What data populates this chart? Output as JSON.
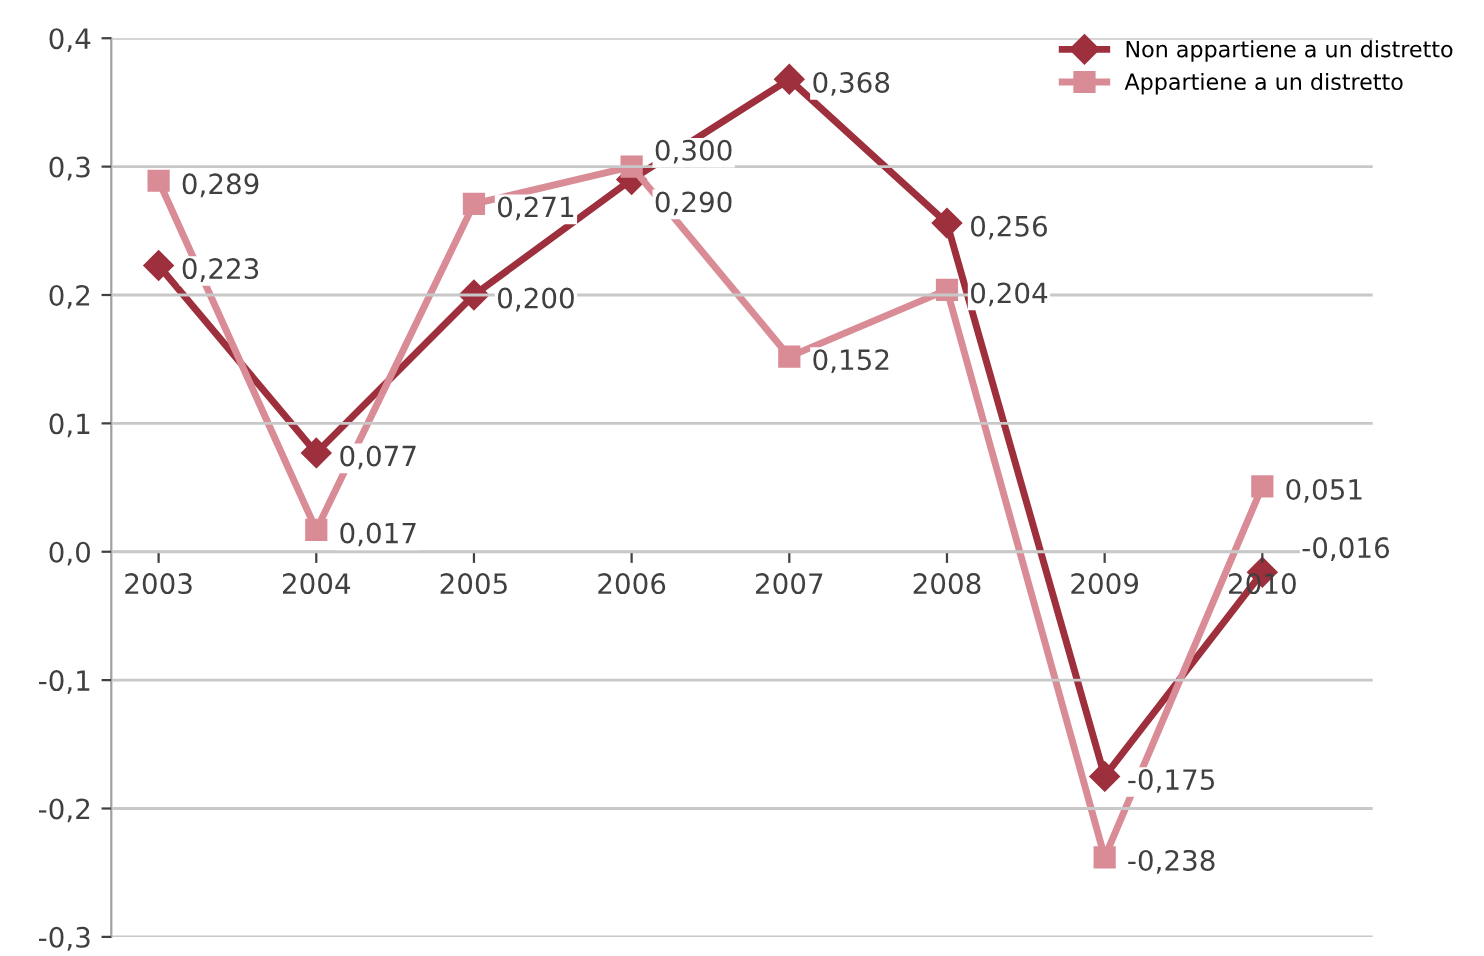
{
  "chart_data": {
    "type": "line",
    "categories": [
      "2003",
      "2004",
      "2005",
      "2006",
      "2007",
      "2008",
      "2009",
      "2010"
    ],
    "series": [
      {
        "name": "Non appartiene a un distretto",
        "color": "#9e2f3c",
        "marker": "diamond",
        "values": [
          0.223,
          0.077,
          0.2,
          0.29,
          0.368,
          0.256,
          -0.175,
          -0.016
        ],
        "value_labels": [
          "0,223",
          "0,077",
          "0,200",
          "0,290",
          "0,368",
          "0,256",
          "-0,175",
          "-0,016"
        ]
      },
      {
        "name": "Appartiene a un distretto",
        "color": "#d98c96",
        "marker": "square",
        "values": [
          0.289,
          0.017,
          0.271,
          0.3,
          0.152,
          0.204,
          -0.238,
          0.051
        ],
        "value_labels": [
          "0,289",
          "0,017",
          "0,271",
          "0,300",
          "0,152",
          "0,204",
          "-0,238",
          "0,051"
        ]
      }
    ],
    "ylim": [
      -0.3,
      0.4
    ],
    "yticks": [
      {
        "value": -0.3,
        "label": "-0,3"
      },
      {
        "value": -0.2,
        "label": "-0,2"
      },
      {
        "value": -0.1,
        "label": "-0,1"
      },
      {
        "value": 0.0,
        "label": "0,0"
      },
      {
        "value": 0.1,
        "label": "0,1"
      },
      {
        "value": 0.2,
        "label": "0,2"
      },
      {
        "value": 0.3,
        "label": "0,3"
      },
      {
        "value": 0.4,
        "label": "0,4"
      }
    ],
    "grid": "y",
    "legend": "top right",
    "line_style": "solid"
  }
}
